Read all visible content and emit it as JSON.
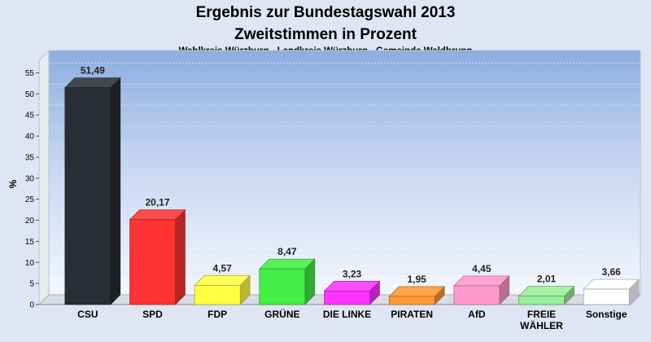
{
  "chart_data": {
    "type": "bar",
    "title_lines": [
      "Ergebnis zur Bundestagswahl 2013",
      "Zweitstimmen in Prozent"
    ],
    "subtitle": "Wahlkreis Würzburg - Landkreis Würzburg - Gemeinde Waldbrunn",
    "ylabel": "%",
    "xlabel": "",
    "ylim": [
      0,
      58
    ],
    "yticks": [
      0,
      5,
      10,
      15,
      20,
      25,
      30,
      35,
      40,
      45,
      50,
      55
    ],
    "grid": true,
    "categories": [
      "CSU",
      "SPD",
      "FDP",
      "GRÜNE",
      "DIE LINKE",
      "PIRATEN",
      "AfD",
      "FREIE WÄHLER",
      "Sonstige"
    ],
    "category_lines": [
      [
        "CSU"
      ],
      [
        "SPD"
      ],
      [
        "FDP"
      ],
      [
        "GRÜNE"
      ],
      [
        "DIE LINKE"
      ],
      [
        "PIRATEN"
      ],
      [
        "AfD"
      ],
      [
        "FREIE",
        "WÄHLER"
      ],
      [
        "Sonstige"
      ]
    ],
    "values": [
      51.49,
      20.17,
      4.57,
      8.47,
      3.23,
      1.95,
      4.45,
      2.01,
      3.66
    ],
    "value_labels": [
      "51,49",
      "20,17",
      "4,57",
      "8,47",
      "3,23",
      "1,95",
      "4,45",
      "2,01",
      "3,66"
    ],
    "colors": [
      "#2a2d33",
      "#ff3333",
      "#ffff44",
      "#44ee44",
      "#ff33ff",
      "#ff9933",
      "#ff99cc",
      "#99ee99",
      "#ffffff"
    ]
  }
}
